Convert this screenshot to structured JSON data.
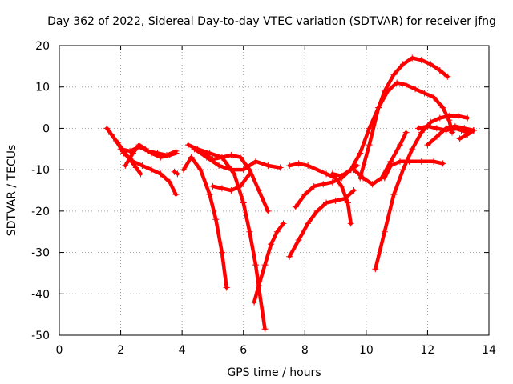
{
  "chart_data": {
    "type": "scatter",
    "title": "Day 362 of 2022, Sidereal Day-to-day VTEC variation (SDTVAR) for receiver jfng",
    "xlabel": "GPS time / hours",
    "ylabel": "SDTVAR / TECUs",
    "xlim": [
      0,
      14
    ],
    "ylim": [
      -50,
      20
    ],
    "xticks": [
      0,
      2,
      4,
      6,
      8,
      10,
      12,
      14
    ],
    "yticks": [
      -50,
      -40,
      -30,
      -20,
      -10,
      0,
      10,
      20
    ],
    "xtick_labels": [
      "0",
      "2",
      "4",
      "6",
      "8",
      "10",
      "12",
      "14"
    ],
    "ytick_labels": [
      "-50",
      "-40",
      "-30",
      "-20",
      "-10",
      "0",
      "10",
      "20"
    ],
    "grid": true,
    "legend": "none",
    "marker": "plus",
    "color": "#ff0000",
    "series": [
      {
        "name": "track-1",
        "x": [
          1.55,
          1.7,
          1.9,
          2.1,
          2.3,
          2.5,
          2.65
        ],
        "y": [
          0,
          -1.5,
          -3.5,
          -5.5,
          -7.5,
          -9.5,
          -11
        ]
      },
      {
        "name": "track-2",
        "x": [
          1.85,
          2.1,
          2.4,
          2.7,
          3.0,
          3.3,
          3.6,
          3.8
        ],
        "y": [
          -3,
          -6,
          -8,
          -9,
          -10,
          -11,
          -13,
          -16
        ]
      },
      {
        "name": "track-3",
        "x": [
          2.15,
          2.4,
          2.6,
          2.8,
          3.0,
          3.3,
          3.6,
          3.8
        ],
        "y": [
          -9,
          -6,
          -4,
          -5,
          -6,
          -7,
          -6.5,
          -6
        ]
      },
      {
        "name": "track-4",
        "x": [
          2.0,
          2.3,
          2.6,
          2.9,
          3.2,
          3.5,
          3.8
        ],
        "y": [
          -5,
          -5.5,
          -4.5,
          -5.5,
          -6,
          -6.5,
          -5.5
        ]
      },
      {
        "name": "track-5",
        "x": [
          3.75,
          3.85
        ],
        "y": [
          -10.5,
          -11
        ]
      },
      {
        "name": "track-6",
        "x": [
          4.05,
          4.3,
          4.6,
          4.9,
          5.1,
          5.3,
          5.45
        ],
        "y": [
          -10,
          -7,
          -10,
          -16,
          -22,
          -30,
          -38.5
        ]
      },
      {
        "name": "track-7",
        "x": [
          4.2,
          4.5,
          4.9,
          5.3,
          5.7,
          6.0,
          6.2,
          6.4,
          6.55,
          6.7
        ],
        "y": [
          -4,
          -5,
          -6,
          -7,
          -11,
          -18,
          -25,
          -33,
          -41,
          -48.5
        ]
      },
      {
        "name": "track-8",
        "x": [
          4.7,
          5.0,
          5.3,
          5.6,
          5.9,
          6.2,
          6.5,
          6.8
        ],
        "y": [
          -6,
          -7.5,
          -7,
          -6.5,
          -7,
          -10,
          -15,
          -20
        ]
      },
      {
        "name": "track-9",
        "x": [
          4.4,
          4.8,
          5.2,
          5.6,
          6.0,
          6.4,
          6.8,
          7.2
        ],
        "y": [
          -5,
          -7,
          -9,
          -10,
          -10,
          -8,
          -9,
          -9.5
        ]
      },
      {
        "name": "track-10",
        "x": [
          5.0,
          5.3,
          5.6,
          5.9,
          6.2
        ],
        "y": [
          -14,
          -14.5,
          -15,
          -14,
          -11
        ]
      },
      {
        "name": "track-11",
        "x": [
          6.35,
          6.5,
          6.7,
          6.9,
          7.1,
          7.3
        ],
        "y": [
          -42,
          -38,
          -33,
          -28,
          -25,
          -23
        ]
      },
      {
        "name": "track-12",
        "x": [
          7.5,
          7.8,
          8.1,
          8.4,
          8.7,
          9.0,
          9.2,
          9.4,
          9.5
        ],
        "y": [
          -9,
          -8.5,
          -9,
          -10,
          -11,
          -12,
          -14,
          -18,
          -23
        ]
      },
      {
        "name": "track-13",
        "x": [
          7.7,
          8.0,
          8.3,
          8.6,
          8.9,
          9.2,
          9.5,
          9.7
        ],
        "y": [
          -19,
          -16,
          -14,
          -13.5,
          -13,
          -12,
          -10,
          -9
        ]
      },
      {
        "name": "track-14",
        "x": [
          7.5,
          7.8,
          8.1,
          8.4,
          8.7,
          9.0,
          9.3,
          9.6
        ],
        "y": [
          -31,
          -27,
          -23,
          -20,
          -18,
          -17.5,
          -17,
          -15
        ]
      },
      {
        "name": "track-15",
        "x": [
          8.9,
          9.2,
          9.5,
          9.8,
          10.1,
          10.4,
          10.6,
          10.9,
          11.2,
          11.5,
          11.8,
          12.1,
          12.4,
          12.65
        ],
        "y": [
          -11,
          -11.5,
          -10,
          -6,
          0,
          5,
          9,
          13,
          15.5,
          17,
          16.5,
          15.5,
          14,
          12.5
        ]
      },
      {
        "name": "track-16",
        "x": [
          9.8,
          10.1,
          10.4,
          10.7,
          11.0,
          11.3,
          11.6,
          11.9,
          12.2,
          12.5,
          12.7,
          12.8
        ],
        "y": [
          -12,
          -4,
          5,
          9,
          11,
          10.5,
          9.5,
          8.5,
          7.5,
          5,
          2,
          -1
        ]
      },
      {
        "name": "track-17",
        "x": [
          10.3,
          10.6,
          10.9,
          11.2,
          11.5,
          11.8,
          12.1,
          12.4,
          12.7,
          13.0,
          13.3
        ],
        "y": [
          -34,
          -25,
          -16,
          -10,
          -5,
          -1,
          1.5,
          2.5,
          3,
          3,
          2.5
        ]
      },
      {
        "name": "track-18",
        "x": [
          9.6,
          9.9,
          10.2,
          10.5,
          10.8,
          11.1,
          11.3
        ],
        "y": [
          -10,
          -12,
          -13.5,
          -12,
          -8,
          -4,
          -1
        ]
      },
      {
        "name": "track-19",
        "x": [
          10.6,
          10.8,
          11.1,
          11.4,
          11.8,
          12.2,
          12.5
        ],
        "y": [
          -12,
          -9,
          -8,
          -8,
          -8,
          -8,
          -8.5
        ]
      },
      {
        "name": "track-20",
        "x": [
          12.0,
          12.3,
          12.6,
          12.9,
          13.2,
          13.5
        ],
        "y": [
          -4,
          -2,
          0,
          0.5,
          0,
          -0.5
        ]
      },
      {
        "name": "track-21",
        "x": [
          11.7,
          12.0,
          12.3,
          12.6,
          12.9,
          13.1,
          13.3,
          13.5
        ],
        "y": [
          0,
          0.5,
          0,
          -0.5,
          0,
          -0.5,
          -1,
          -0.5
        ]
      },
      {
        "name": "track-22",
        "x": [
          13.05,
          13.3,
          13.5
        ],
        "y": [
          -2.5,
          -1.5,
          -0.5
        ]
      }
    ]
  }
}
